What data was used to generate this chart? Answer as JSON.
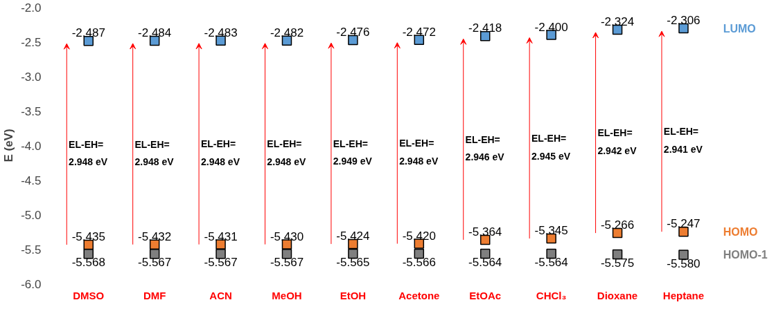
{
  "chart_data": {
    "type": "scatter",
    "marker": "square",
    "ylabel": "E (eV)",
    "categories": [
      "DMSO",
      "DMF",
      "ACN",
      "MeOH",
      "EtOH",
      "Acetone",
      "EtOAc",
      "CHCl₃",
      "Dioxane",
      "Heptane"
    ],
    "ylim": [
      -6.0,
      -2.0
    ],
    "yticks": [
      {
        "value": -6.0,
        "label": "-6.0"
      },
      {
        "value": -5.5,
        "label": "-5.5"
      },
      {
        "value": -5.0,
        "label": "-5.0"
      },
      {
        "value": -4.5,
        "label": "-4.5"
      },
      {
        "value": -4.0,
        "label": "-4.0"
      },
      {
        "value": -3.5,
        "label": "-3.5"
      },
      {
        "value": -3.0,
        "label": "-3.0"
      },
      {
        "value": -2.5,
        "label": "-2.5"
      },
      {
        "value": -2.0,
        "label": "-2.0"
      }
    ],
    "grid": false,
    "legend": "right",
    "series": [
      {
        "name": "LUMO",
        "color": "#5b9bd5",
        "values": [
          -2.487,
          -2.484,
          -2.483,
          -2.482,
          -2.476,
          -2.472,
          -2.418,
          -2.4,
          -2.324,
          -2.306
        ],
        "value_labels": [
          "-2.487",
          "-2.484",
          "-2.483",
          "-2.482",
          "-2.476",
          "-2.472",
          "-2.418",
          "-2.400",
          "-2.324",
          "-2.306"
        ]
      },
      {
        "name": "HOMO",
        "color": "#ed7d31",
        "values": [
          -5.435,
          -5.432,
          -5.431,
          -5.43,
          -5.424,
          -5.42,
          -5.364,
          -5.345,
          -5.266,
          -5.247
        ],
        "value_labels": [
          "-5.435",
          "-5.432",
          "-5.431",
          "-5.430",
          "-5.424",
          "-5.420",
          "-5.364",
          "-5.345",
          "-5.266",
          "-5.247"
        ]
      },
      {
        "name": "HOMO-1",
        "color": "#7f7f7f",
        "values": [
          -5.568,
          -5.567,
          -5.567,
          -5.567,
          -5.565,
          -5.566,
          -5.564,
          -5.564,
          -5.575,
          -5.58
        ],
        "value_labels": [
          "-5.568",
          "-5.567",
          "-5.567",
          "-5.567",
          "-5.565",
          "-5.566",
          "-5.564",
          "-5.564",
          "-5.575",
          "-5.580"
        ]
      }
    ],
    "annotations": [
      "EL-EH=\n2.948 eV",
      "EL-EH=\n2.948 eV",
      "EL-EH=\n2.948 eV",
      "EL-EH=\n2.948 eV",
      "EL-EH=\n2.949 eV",
      "EL-EH=\n2.948 eV",
      "EL-EH=\n2.946 eV",
      "EL-EH=\n2.945 eV",
      "EL-EH=\n2.942 eV",
      "EL-EH=\n2.941 eV"
    ]
  }
}
